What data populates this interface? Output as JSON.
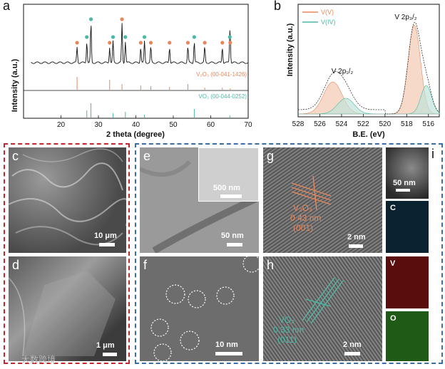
{
  "panel_labels": {
    "a": "a",
    "b": "b",
    "c": "c",
    "d": "d",
    "e": "e",
    "f": "f",
    "g": "g",
    "h": "h",
    "i": "i"
  },
  "xrd": {
    "ylabel": "Intensity (a.u.)",
    "xlabel": "2 theta (degree)",
    "xticks": [
      "20",
      "30",
      "40",
      "50",
      "60",
      "70"
    ],
    "ref1": "V₂O₃ (00-041-1426)",
    "ref2": "VO₂ (00-044-0252)"
  },
  "xps": {
    "ylabel": "Intensity (a.u.)",
    "xlabel": "B.E. (eV)",
    "xticks": [
      "528",
      "526",
      "524",
      "522",
      "520",
      "518",
      "516"
    ],
    "legend": [
      "V(V)",
      "V(IV)"
    ],
    "peak_label_32": "V 2p₃/₂",
    "peak_label_12": "V 2p₁/₂"
  },
  "scalebars": {
    "c": "10 μm",
    "d": "1 μm",
    "e": "50 nm",
    "e_inset": "500 nm",
    "f": "10 nm",
    "g": "2 nm",
    "h": "2 nm",
    "i": "50 nm"
  },
  "hrtem": {
    "g_phase": "V₂O₃",
    "g_spacing": "0.43 nm",
    "g_plane": "(001)",
    "h_phase": "VO₂",
    "h_spacing": "0.33 nm",
    "h_plane": "(011)"
  },
  "eds": [
    "C",
    "V",
    "O"
  ],
  "watermark": "大数跨境",
  "colors": {
    "orange": "#e8875c",
    "teal": "#4bb9a4",
    "red_border": "#c0282b",
    "blue_border": "#3a6ea5"
  },
  "chart_data": [
    {
      "type": "line",
      "title": "",
      "xlabel": "2 theta (degree)",
      "ylabel": "Intensity (a.u.)",
      "xlim": [
        10,
        70
      ],
      "series": [
        {
          "name": "V₂O₃ (00-041-1426)",
          "peaks_x": [
            24.3,
            33.0,
            36.3,
            41.3,
            44.0,
            49.0,
            53.9,
            58.4,
            63.1,
            65.2
          ]
        },
        {
          "name": "VO₂ (00-044-0252)",
          "peaks_x": [
            26.9,
            28.0,
            33.9,
            37.2,
            42.3,
            55.6,
            65.1
          ]
        }
      ]
    },
    {
      "type": "area",
      "title": "",
      "xlabel": "B.E. (eV)",
      "ylabel": "Intensity (a.u.)",
      "xlim": [
        528,
        515
      ],
      "series": [
        {
          "name": "V(V)",
          "peaks_x": [
            517.3,
            524.8
          ]
        },
        {
          "name": "V(IV)",
          "peaks_x": [
            516.2,
            523.6
          ]
        }
      ]
    }
  ]
}
